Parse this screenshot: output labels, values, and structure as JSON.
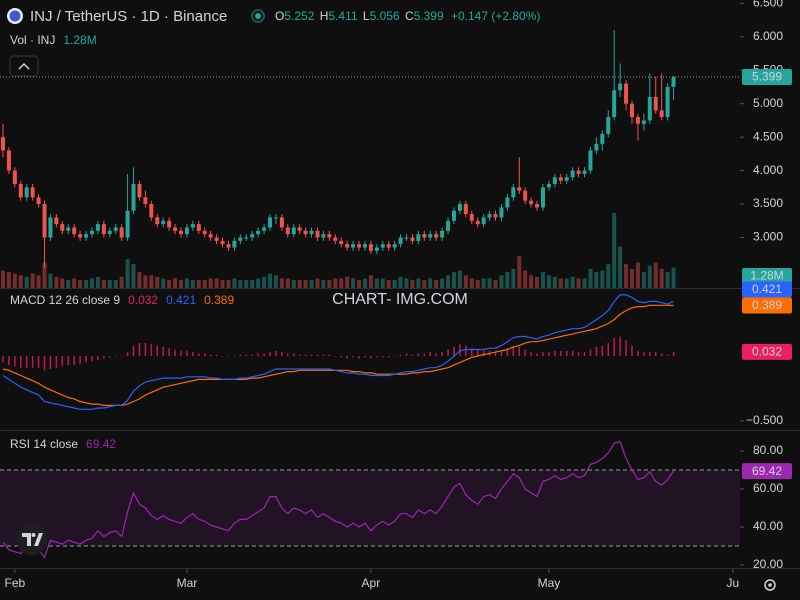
{
  "chart_data": {
    "type": "candlestick",
    "symbol": "INJ / TetherUS · 1D · Binance",
    "ohlc_letters": [
      "O",
      "H",
      "L",
      "C"
    ],
    "change": "+0.147 (+2.80%)",
    "up_color": "#26a69a",
    "down_color": "#ef5350",
    "grid": false,
    "xlim": [
      -0.5,
      124.2
    ],
    "xticks": [
      {
        "value": 2,
        "label": "Feb"
      },
      {
        "value": 31,
        "label": "Mar"
      },
      {
        "value": 62,
        "label": "Apr"
      },
      {
        "value": 92,
        "label": "May"
      },
      {
        "value": 123,
        "label": "Ju"
      }
    ],
    "ylim": [
      2.29,
      6.55
    ],
    "yticks": [
      {
        "value": 3,
        "label": "3.000"
      },
      {
        "value": 3.5,
        "label": "3.500"
      },
      {
        "value": 4,
        "label": "4.000"
      },
      {
        "value": 4.5,
        "label": "4.500"
      },
      {
        "value": 5,
        "label": "5.000"
      },
      {
        "value": 5.5,
        "label": "5.500"
      },
      {
        "value": 6,
        "label": "6.000"
      },
      {
        "value": 6.5,
        "label": "6.500"
      }
    ],
    "candles": [
      [
        4.5,
        4.7,
        4.2,
        4.3
      ],
      [
        4.3,
        4.35,
        3.95,
        4.0
      ],
      [
        4.0,
        4.05,
        3.75,
        3.8
      ],
      [
        3.8,
        3.85,
        3.55,
        3.6
      ],
      [
        3.6,
        3.8,
        3.55,
        3.75
      ],
      [
        3.75,
        3.8,
        3.55,
        3.6
      ],
      [
        3.6,
        3.65,
        3.45,
        3.5
      ],
      [
        3.5,
        3.55,
        2.55,
        3.0
      ],
      [
        3.0,
        3.35,
        2.95,
        3.3
      ],
      [
        3.3,
        3.35,
        3.15,
        3.2
      ],
      [
        3.2,
        3.25,
        3.05,
        3.1
      ],
      [
        3.1,
        3.2,
        3.05,
        3.15
      ],
      [
        3.15,
        3.2,
        3.0,
        3.05
      ],
      [
        3.05,
        3.1,
        2.95,
        3.0
      ],
      [
        3.0,
        3.1,
        2.95,
        3.05
      ],
      [
        3.05,
        3.15,
        3.0,
        3.1
      ],
      [
        3.1,
        3.25,
        3.05,
        3.2
      ],
      [
        3.2,
        3.25,
        3.0,
        3.05
      ],
      [
        3.05,
        3.15,
        3.0,
        3.1
      ],
      [
        3.1,
        3.2,
        3.05,
        3.15
      ],
      [
        3.15,
        3.2,
        2.95,
        3.0
      ],
      [
        3.0,
        3.95,
        2.95,
        3.4
      ],
      [
        3.4,
        4.05,
        3.35,
        3.8
      ],
      [
        3.8,
        3.85,
        3.55,
        3.6
      ],
      [
        3.6,
        3.7,
        3.45,
        3.5
      ],
      [
        3.5,
        3.55,
        3.25,
        3.3
      ],
      [
        3.3,
        3.35,
        3.15,
        3.2
      ],
      [
        3.2,
        3.3,
        3.15,
        3.25
      ],
      [
        3.25,
        3.3,
        3.1,
        3.15
      ],
      [
        3.15,
        3.2,
        3.05,
        3.1
      ],
      [
        3.1,
        3.15,
        3.0,
        3.05
      ],
      [
        3.05,
        3.2,
        3.0,
        3.15
      ],
      [
        3.15,
        3.25,
        3.1,
        3.2
      ],
      [
        3.2,
        3.25,
        3.05,
        3.1
      ],
      [
        3.1,
        3.15,
        3.0,
        3.05
      ],
      [
        3.05,
        3.1,
        2.95,
        3.0
      ],
      [
        3.0,
        3.05,
        2.9,
        2.95
      ],
      [
        2.95,
        3.0,
        2.85,
        2.9
      ],
      [
        2.9,
        2.95,
        2.8,
        2.85
      ],
      [
        2.85,
        3.0,
        2.8,
        2.95
      ],
      [
        2.95,
        3.05,
        2.9,
        3.0
      ],
      [
        3.0,
        3.05,
        2.95,
        3.0
      ],
      [
        3.0,
        3.1,
        2.95,
        3.05
      ],
      [
        3.05,
        3.15,
        3.0,
        3.1
      ],
      [
        3.1,
        3.2,
        3.05,
        3.15
      ],
      [
        3.15,
        3.35,
        3.1,
        3.3
      ],
      [
        3.3,
        3.35,
        3.2,
        3.3
      ],
      [
        3.3,
        3.35,
        3.1,
        3.15
      ],
      [
        3.15,
        3.2,
        3.0,
        3.05
      ],
      [
        3.05,
        3.2,
        3.0,
        3.15
      ],
      [
        3.15,
        3.2,
        3.05,
        3.1
      ],
      [
        3.1,
        3.15,
        3.0,
        3.05
      ],
      [
        3.05,
        3.15,
        3.0,
        3.1
      ],
      [
        3.1,
        3.15,
        2.95,
        3.0
      ],
      [
        3.0,
        3.1,
        2.95,
        3.05
      ],
      [
        3.05,
        3.1,
        2.95,
        3.0
      ],
      [
        3.0,
        3.05,
        2.9,
        2.95
      ],
      [
        2.95,
        3.0,
        2.85,
        2.9
      ],
      [
        2.9,
        2.95,
        2.8,
        2.85
      ],
      [
        2.85,
        2.95,
        2.8,
        2.9
      ],
      [
        2.9,
        2.95,
        2.8,
        2.85
      ],
      [
        2.85,
        2.95,
        2.8,
        2.9
      ],
      [
        2.9,
        2.95,
        2.75,
        2.8
      ],
      [
        2.8,
        2.9,
        2.75,
        2.85
      ],
      [
        2.85,
        2.95,
        2.8,
        2.9
      ],
      [
        2.9,
        2.95,
        2.8,
        2.85
      ],
      [
        2.85,
        2.95,
        2.8,
        2.9
      ],
      [
        2.9,
        3.05,
        2.85,
        3.0
      ],
      [
        3.0,
        3.05,
        2.95,
        3.0
      ],
      [
        3.0,
        3.05,
        2.9,
        2.95
      ],
      [
        2.95,
        3.1,
        2.9,
        3.05
      ],
      [
        3.05,
        3.1,
        2.95,
        3.0
      ],
      [
        3.0,
        3.1,
        2.95,
        3.05
      ],
      [
        3.05,
        3.1,
        2.95,
        3.0
      ],
      [
        3.0,
        3.15,
        2.95,
        3.1
      ],
      [
        3.1,
        3.3,
        3.05,
        3.25
      ],
      [
        3.25,
        3.45,
        3.2,
        3.4
      ],
      [
        3.4,
        3.55,
        3.35,
        3.5
      ],
      [
        3.5,
        3.55,
        3.3,
        3.35
      ],
      [
        3.35,
        3.4,
        3.2,
        3.25
      ],
      [
        3.25,
        3.3,
        3.15,
        3.2
      ],
      [
        3.2,
        3.35,
        3.15,
        3.3
      ],
      [
        3.3,
        3.4,
        3.25,
        3.35
      ],
      [
        3.35,
        3.4,
        3.25,
        3.3
      ],
      [
        3.3,
        3.5,
        3.25,
        3.45
      ],
      [
        3.45,
        3.65,
        3.4,
        3.6
      ],
      [
        3.6,
        3.8,
        3.55,
        3.75
      ],
      [
        3.75,
        4.2,
        3.65,
        3.7
      ],
      [
        3.7,
        3.75,
        3.5,
        3.55
      ],
      [
        3.55,
        3.6,
        3.45,
        3.5
      ],
      [
        3.5,
        3.55,
        3.4,
        3.45
      ],
      [
        3.45,
        3.8,
        3.4,
        3.75
      ],
      [
        3.75,
        3.85,
        3.7,
        3.8
      ],
      [
        3.8,
        3.95,
        3.75,
        3.9
      ],
      [
        3.9,
        3.95,
        3.8,
        3.85
      ],
      [
        3.85,
        3.95,
        3.8,
        3.9
      ],
      [
        3.9,
        4.05,
        3.85,
        4.0
      ],
      [
        4.0,
        4.05,
        3.9,
        3.95
      ],
      [
        3.95,
        4.05,
        3.9,
        4.0
      ],
      [
        4.0,
        4.35,
        3.95,
        4.3
      ],
      [
        4.3,
        4.5,
        4.25,
        4.4
      ],
      [
        4.4,
        4.6,
        4.3,
        4.55
      ],
      [
        4.55,
        4.9,
        4.5,
        4.8
      ],
      [
        4.8,
        6.1,
        4.75,
        5.2
      ],
      [
        5.2,
        5.6,
        5.1,
        5.3
      ],
      [
        5.3,
        5.35,
        4.9,
        5.0
      ],
      [
        5.0,
        5.05,
        4.7,
        4.8
      ],
      [
        4.8,
        4.85,
        4.45,
        4.7
      ],
      [
        4.7,
        4.85,
        4.6,
        4.75
      ],
      [
        4.75,
        5.45,
        4.7,
        5.1
      ],
      [
        5.1,
        5.4,
        4.85,
        4.9
      ],
      [
        4.9,
        5.45,
        4.75,
        4.8
      ],
      [
        4.8,
        5.3,
        4.75,
        5.252
      ],
      [
        5.252,
        5.411,
        5.056,
        5.399
      ]
    ],
    "volume": {
      "name": "Vol · INJ",
      "last_label": "1.28M",
      "values": [
        1.1,
        1.0,
        0.9,
        0.8,
        0.7,
        0.9,
        0.8,
        1.6,
        0.9,
        0.7,
        0.6,
        0.5,
        0.6,
        0.5,
        0.5,
        0.6,
        0.7,
        0.5,
        0.5,
        0.5,
        0.7,
        1.8,
        1.5,
        1.0,
        0.8,
        0.8,
        0.7,
        0.6,
        0.5,
        0.6,
        0.5,
        0.6,
        0.5,
        0.5,
        0.5,
        0.6,
        0.6,
        0.5,
        0.5,
        0.6,
        0.5,
        0.5,
        0.5,
        0.6,
        0.7,
        0.9,
        0.8,
        0.6,
        0.6,
        0.5,
        0.5,
        0.5,
        0.5,
        0.6,
        0.5,
        0.5,
        0.6,
        0.6,
        0.7,
        0.6,
        0.5,
        0.6,
        0.8,
        0.6,
        0.6,
        0.5,
        0.5,
        0.7,
        0.6,
        0.5,
        0.6,
        0.5,
        0.6,
        0.5,
        0.6,
        0.8,
        1.0,
        1.1,
        0.8,
        0.6,
        0.5,
        0.6,
        0.6,
        0.5,
        0.8,
        1.0,
        1.2,
        2.0,
        1.1,
        0.8,
        0.7,
        1.0,
        0.8,
        0.7,
        0.6,
        0.6,
        0.7,
        0.6,
        0.6,
        1.2,
        1.0,
        1.1,
        1.5,
        4.7,
        2.6,
        1.5,
        1.2,
        1.6,
        1.0,
        1.4,
        1.6,
        1.2,
        1.0,
        1.28
      ]
    },
    "macd": {
      "name": "MACD 12 26 close 9",
      "ylim": [
        -0.569,
        0.508
      ],
      "yticks": [
        {
          "value": -0.5,
          "label": "−0.500"
        }
      ],
      "histogram": {
        "color": "#e91e63",
        "values": [
          -0.05,
          -0.07,
          -0.08,
          -0.09,
          -0.09,
          -0.09,
          -0.09,
          -0.11,
          -0.1,
          -0.09,
          -0.08,
          -0.07,
          -0.07,
          -0.06,
          -0.05,
          -0.04,
          -0.03,
          -0.02,
          -0.01,
          0.0,
          0.0,
          0.03,
          0.08,
          0.1,
          0.1,
          0.09,
          0.08,
          0.07,
          0.06,
          0.05,
          0.04,
          0.04,
          0.03,
          0.02,
          0.02,
          0.01,
          0.01,
          0.0,
          0.0,
          0.0,
          0.01,
          0.01,
          0.01,
          0.02,
          0.02,
          0.03,
          0.04,
          0.03,
          0.02,
          0.02,
          0.01,
          0.01,
          0.01,
          0.01,
          0.01,
          0.01,
          0.0,
          -0.01,
          -0.02,
          -0.01,
          -0.02,
          -0.01,
          -0.02,
          -0.01,
          -0.01,
          -0.01,
          0.0,
          0.01,
          0.02,
          0.01,
          0.02,
          0.02,
          0.03,
          0.02,
          0.03,
          0.05,
          0.07,
          0.09,
          0.08,
          0.06,
          0.05,
          0.04,
          0.04,
          0.03,
          0.04,
          0.06,
          0.07,
          0.07,
          0.05,
          0.03,
          0.02,
          0.03,
          0.03,
          0.04,
          0.04,
          0.04,
          0.04,
          0.03,
          0.03,
          0.05,
          0.07,
          0.08,
          0.1,
          0.14,
          0.15,
          0.12,
          0.08,
          0.04,
          0.03,
          0.03,
          0.03,
          0.02,
          0.01,
          0.032
        ]
      },
      "macd": {
        "color": "#2962ff",
        "values": [
          -0.15,
          -0.18,
          -0.21,
          -0.24,
          -0.26,
          -0.28,
          -0.3,
          -0.35,
          -0.36,
          -0.37,
          -0.38,
          -0.39,
          -0.4,
          -0.41,
          -0.41,
          -0.41,
          -0.4,
          -0.4,
          -0.39,
          -0.38,
          -0.38,
          -0.34,
          -0.27,
          -0.23,
          -0.2,
          -0.19,
          -0.18,
          -0.17,
          -0.17,
          -0.17,
          -0.17,
          -0.16,
          -0.16,
          -0.16,
          -0.16,
          -0.17,
          -0.17,
          -0.18,
          -0.18,
          -0.18,
          -0.17,
          -0.17,
          -0.16,
          -0.15,
          -0.14,
          -0.12,
          -0.1,
          -0.1,
          -0.1,
          -0.1,
          -0.1,
          -0.1,
          -0.1,
          -0.1,
          -0.1,
          -0.1,
          -0.11,
          -0.12,
          -0.13,
          -0.13,
          -0.14,
          -0.14,
          -0.15,
          -0.15,
          -0.15,
          -0.15,
          -0.14,
          -0.13,
          -0.12,
          -0.12,
          -0.11,
          -0.1,
          -0.09,
          -0.09,
          -0.07,
          -0.04,
          0.0,
          0.04,
          0.05,
          0.05,
          0.05,
          0.05,
          0.06,
          0.06,
          0.08,
          0.11,
          0.14,
          0.15,
          0.15,
          0.14,
          0.13,
          0.15,
          0.16,
          0.18,
          0.19,
          0.2,
          0.21,
          0.21,
          0.22,
          0.25,
          0.28,
          0.31,
          0.35,
          0.42,
          0.47,
          0.47,
          0.45,
          0.42,
          0.41,
          0.42,
          0.42,
          0.41,
          0.4,
          0.421
        ]
      },
      "signal": {
        "color": "#ff6d00",
        "values": [
          -0.1,
          -0.11,
          -0.13,
          -0.15,
          -0.17,
          -0.19,
          -0.21,
          -0.24,
          -0.26,
          -0.28,
          -0.3,
          -0.32,
          -0.33,
          -0.35,
          -0.36,
          -0.37,
          -0.37,
          -0.38,
          -0.38,
          -0.38,
          -0.38,
          -0.37,
          -0.35,
          -0.33,
          -0.3,
          -0.28,
          -0.26,
          -0.24,
          -0.23,
          -0.22,
          -0.21,
          -0.2,
          -0.19,
          -0.18,
          -0.18,
          -0.18,
          -0.18,
          -0.18,
          -0.18,
          -0.18,
          -0.18,
          -0.18,
          -0.17,
          -0.17,
          -0.16,
          -0.15,
          -0.14,
          -0.13,
          -0.12,
          -0.12,
          -0.11,
          -0.11,
          -0.11,
          -0.11,
          -0.11,
          -0.11,
          -0.11,
          -0.11,
          -0.11,
          -0.12,
          -0.12,
          -0.13,
          -0.13,
          -0.14,
          -0.14,
          -0.14,
          -0.14,
          -0.14,
          -0.14,
          -0.13,
          -0.13,
          -0.12,
          -0.12,
          -0.11,
          -0.1,
          -0.09,
          -0.07,
          -0.05,
          -0.03,
          -0.01,
          0.0,
          0.01,
          0.02,
          0.03,
          0.04,
          0.05,
          0.07,
          0.08,
          0.1,
          0.11,
          0.11,
          0.12,
          0.13,
          0.14,
          0.15,
          0.16,
          0.17,
          0.18,
          0.19,
          0.2,
          0.21,
          0.23,
          0.25,
          0.28,
          0.32,
          0.35,
          0.37,
          0.38,
          0.38,
          0.39,
          0.39,
          0.39,
          0.39,
          0.389
        ]
      }
    },
    "rsi": {
      "name": "RSI 14 close",
      "color": "#9c27b0",
      "ylim": [
        18.4,
        90
      ],
      "bands": [
        30,
        70
      ],
      "yticks": [
        {
          "value": 20,
          "label": "20.00"
        },
        {
          "value": 40,
          "label": "40.00"
        },
        {
          "value": 60,
          "label": "60.00"
        },
        {
          "value": 80,
          "label": "80.00"
        }
      ],
      "values": [
        32,
        28,
        27,
        26,
        30,
        29,
        28,
        24,
        33,
        32,
        31,
        33,
        32,
        31,
        33,
        34,
        38,
        35,
        37,
        38,
        35,
        48,
        58,
        52,
        50,
        46,
        44,
        46,
        44,
        43,
        42,
        45,
        47,
        44,
        43,
        41,
        40,
        39,
        38,
        42,
        44,
        44,
        46,
        48,
        50,
        56,
        56,
        50,
        47,
        50,
        49,
        47,
        49,
        45,
        47,
        45,
        43,
        42,
        40,
        42,
        40,
        42,
        38,
        41,
        43,
        41,
        43,
        47,
        47,
        45,
        49,
        47,
        49,
        47,
        51,
        56,
        61,
        63,
        57,
        54,
        52,
        56,
        57,
        55,
        60,
        64,
        68,
        66,
        60,
        58,
        56,
        64,
        65,
        67,
        65,
        66,
        68,
        66,
        67,
        73,
        74,
        76,
        79,
        84,
        85,
        76,
        70,
        65,
        66,
        69,
        64,
        62,
        65,
        69.42
      ]
    },
    "watermark": "CHART- IMG.COM"
  }
}
